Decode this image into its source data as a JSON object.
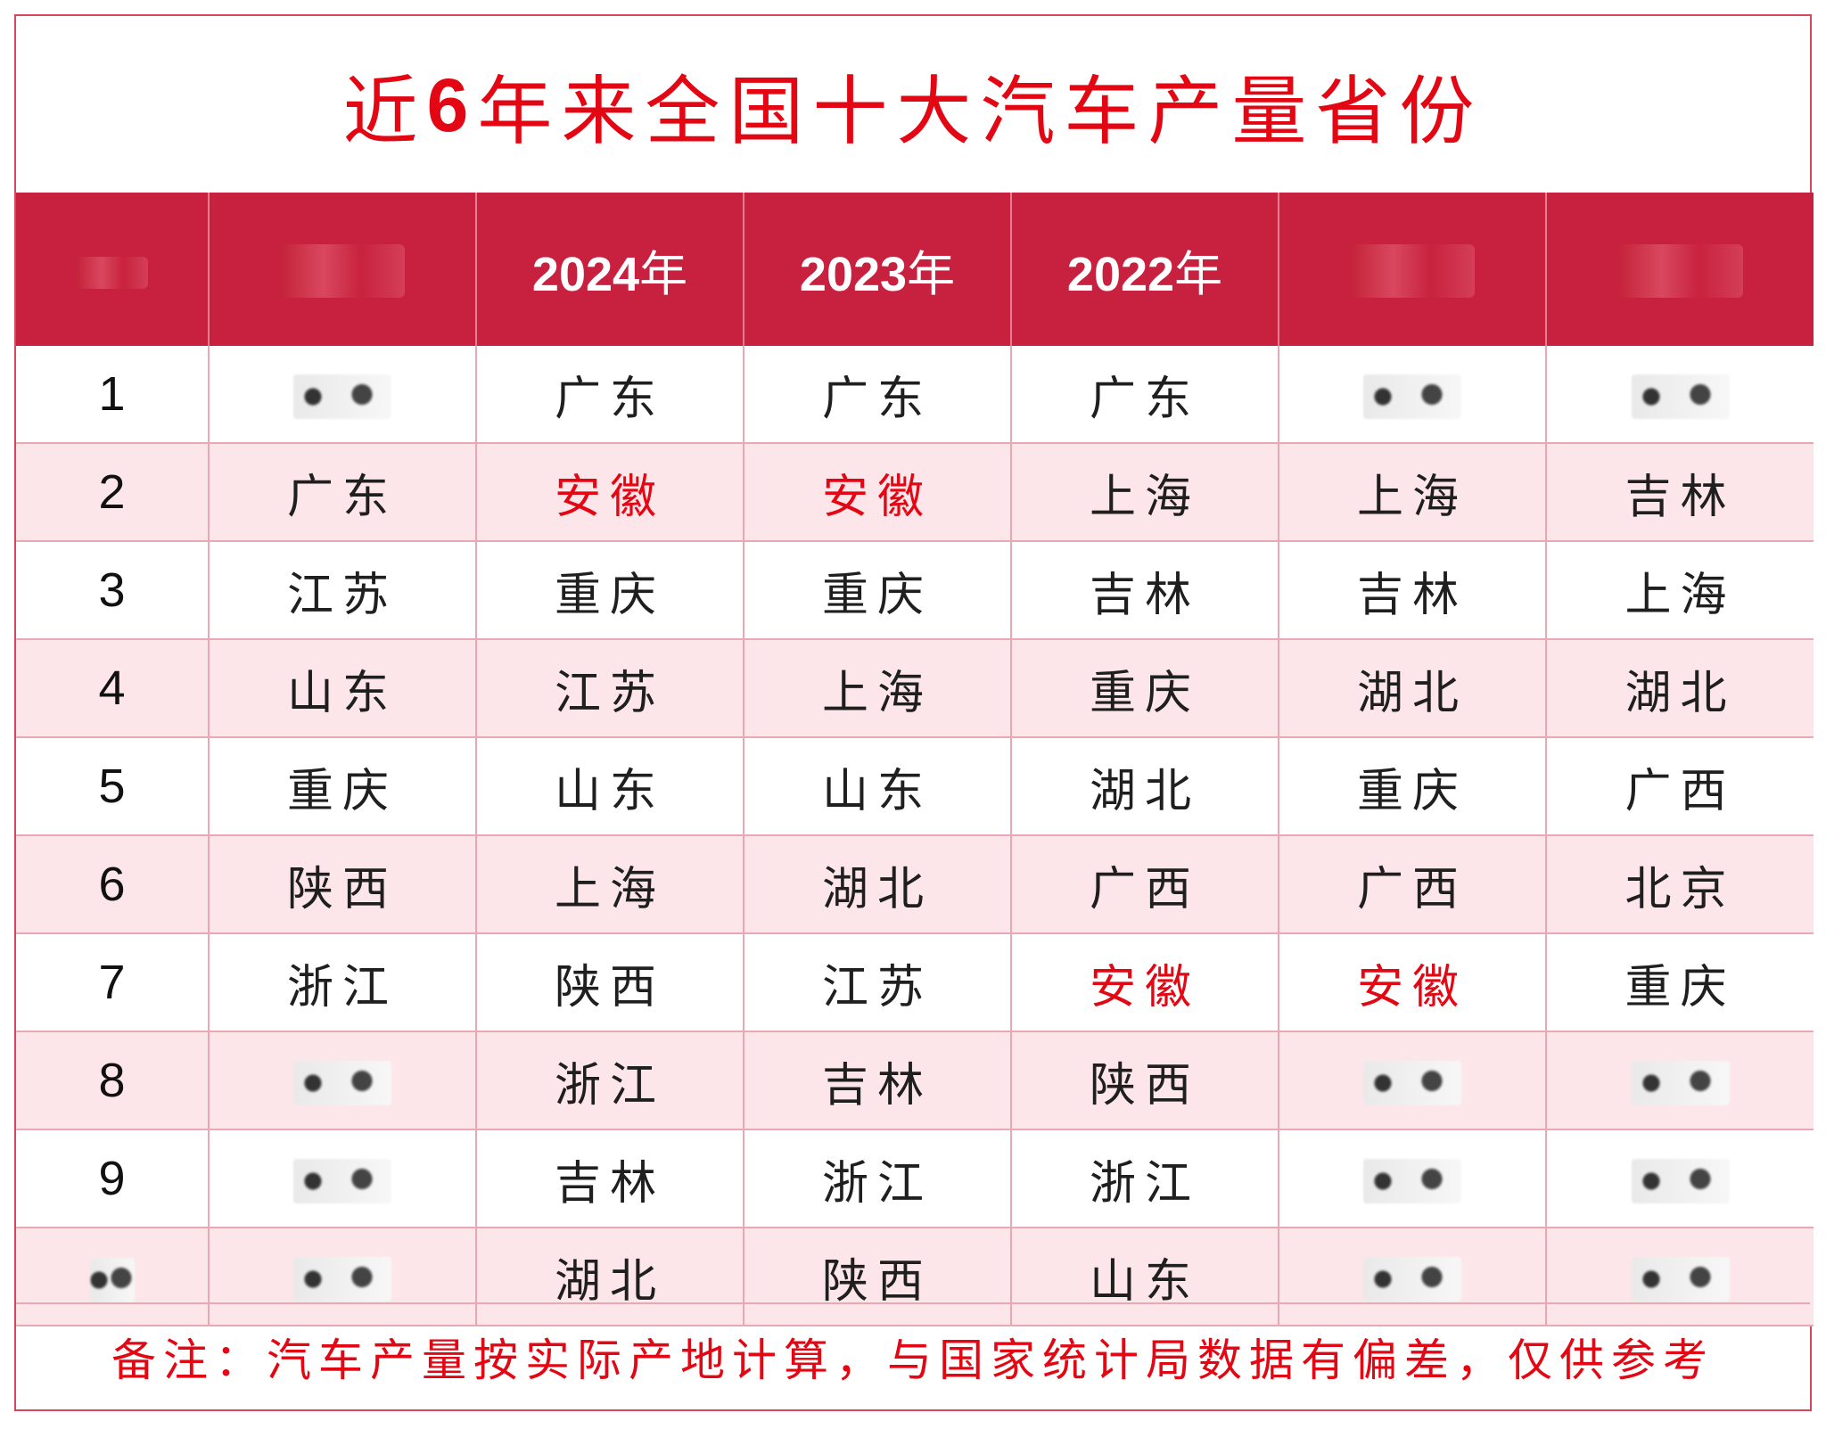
{
  "title_prefix": "近",
  "title_number": "6",
  "title_suffix": "年来全国十大汽车产量省份",
  "header": {
    "year_2024": "2024",
    "year_2023": "2023",
    "year_2022": "2022",
    "year_unit": "年"
  },
  "rows": [
    {
      "rank": "1",
      "c2024": "广东",
      "c2023": "广东",
      "c2022": "广东"
    },
    {
      "rank": "2",
      "c2025": "广东",
      "c2024": "安徽",
      "c2023": "安徽",
      "c2022": "上海",
      "c2021": "上海",
      "c2020": "吉林"
    },
    {
      "rank": "3",
      "c2025": "江苏",
      "c2024": "重庆",
      "c2023": "重庆",
      "c2022": "吉林",
      "c2021": "吉林",
      "c2020": "上海"
    },
    {
      "rank": "4",
      "c2025": "山东",
      "c2024": "江苏",
      "c2023": "上海",
      "c2022": "重庆",
      "c2021": "湖北",
      "c2020": "湖北"
    },
    {
      "rank": "5",
      "c2025": "重庆",
      "c2024": "山东",
      "c2023": "山东",
      "c2022": "湖北",
      "c2021": "重庆",
      "c2020": "广西"
    },
    {
      "rank": "6",
      "c2025": "陕西",
      "c2024": "上海",
      "c2023": "湖北",
      "c2022": "广西",
      "c2021": "广西",
      "c2020": "北京"
    },
    {
      "rank": "7",
      "c2025": "浙江",
      "c2024": "陕西",
      "c2023": "江苏",
      "c2022": "安徽",
      "c2021": "安徽",
      "c2020": "重庆"
    },
    {
      "rank": "8",
      "c2024": "浙江",
      "c2023": "吉林",
      "c2022": "陕西"
    },
    {
      "rank": "9",
      "c2024": "吉林",
      "c2023": "浙江",
      "c2022": "浙江"
    },
    {
      "c2024": "湖北",
      "c2023": "陕西",
      "c2022": "山东"
    }
  ],
  "highlight_color": "#e30613",
  "header_color": "#c8203f",
  "footer_note": "备注：汽车产量按实际产地计算，与国家统计局数据有偏差，仅供参考"
}
